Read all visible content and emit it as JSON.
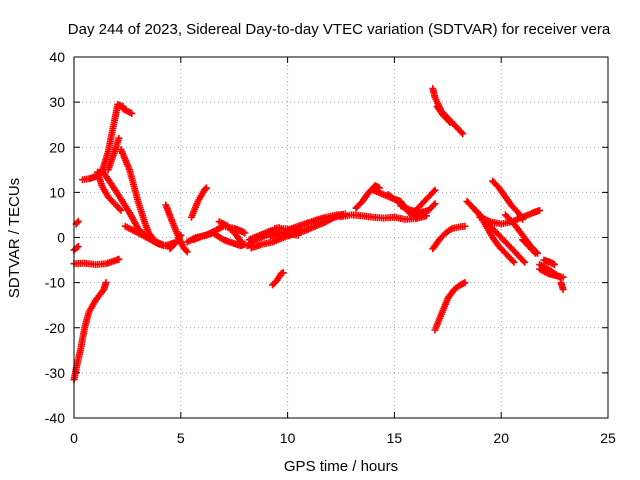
{
  "chart_data": {
    "type": "scatter",
    "title": "Day 244 of 2023, Sidereal Day-to-day VTEC variation (SDTVAR) for receiver vera",
    "xlabel": "GPS time / hours",
    "ylabel": "SDTVAR / TECUs",
    "xlim": [
      0,
      25
    ],
    "ylim": [
      -40,
      40
    ],
    "xticks": [
      "0",
      "5",
      "10",
      "15",
      "20",
      "25"
    ],
    "yticks": [
      "40",
      "30",
      "20",
      "10",
      "0",
      "-10",
      "-20",
      "-30",
      "-40"
    ],
    "grid": true,
    "marker": "plus",
    "color": "#ff0000",
    "segments": [
      [
        [
          0.0,
          -5.8
        ],
        [
          0.5,
          -5.7
        ],
        [
          1.0,
          -6.0
        ],
        [
          1.5,
          -5.8
        ],
        [
          2.0,
          -5.0
        ],
        [
          2.1,
          -4.8
        ]
      ],
      [
        [
          0.0,
          -31.5
        ],
        [
          0.15,
          -28.0
        ],
        [
          0.3,
          -25.0
        ],
        [
          0.5,
          -20.0
        ],
        [
          0.7,
          -16.5
        ],
        [
          1.0,
          -14.0
        ],
        [
          1.4,
          -11.5
        ],
        [
          1.5,
          -10.0
        ]
      ],
      [
        [
          0.0,
          -2.8
        ],
        [
          0.2,
          -2.0
        ]
      ],
      [
        [
          0.1,
          3.0
        ],
        [
          0.2,
          3.6
        ]
      ],
      [
        [
          0.4,
          12.8
        ],
        [
          0.7,
          13.0
        ],
        [
          1.0,
          13.5
        ],
        [
          1.3,
          14.5
        ],
        [
          1.6,
          19.0
        ],
        [
          1.9,
          26.0
        ],
        [
          2.05,
          29.5
        ],
        [
          2.3,
          29.0
        ]
      ],
      [
        [
          1.1,
          14.5
        ],
        [
          1.3,
          11.5
        ],
        [
          1.6,
          9.0
        ],
        [
          2.0,
          7.0
        ],
        [
          2.2,
          6.0
        ]
      ],
      [
        [
          2.3,
          28.5
        ],
        [
          2.7,
          27.5
        ]
      ],
      [
        [
          1.6,
          15.0
        ],
        [
          1.9,
          19.0
        ],
        [
          2.1,
          22.0
        ]
      ],
      [
        [
          2.2,
          19.5
        ],
        [
          2.6,
          15.0
        ],
        [
          3.0,
          8.0
        ],
        [
          3.3,
          3.5
        ],
        [
          3.5,
          1.0
        ],
        [
          3.8,
          -0.8
        ],
        [
          4.2,
          -1.8
        ],
        [
          4.5,
          -1.5
        ],
        [
          4.7,
          -1.2
        ]
      ],
      [
        [
          1.3,
          15.0
        ],
        [
          2.0,
          10.0
        ],
        [
          2.6,
          5.5
        ],
        [
          3.0,
          2.0
        ],
        [
          3.4,
          0.2
        ],
        [
          3.8,
          -1.0
        ],
        [
          4.2,
          -1.8
        ],
        [
          4.5,
          -1.7
        ]
      ],
      [
        [
          2.4,
          2.5
        ],
        [
          3.0,
          1.0
        ],
        [
          3.6,
          -0.5
        ],
        [
          4.0,
          -1.5
        ],
        [
          4.5,
          -2.0
        ]
      ],
      [
        [
          4.3,
          7.2
        ],
        [
          4.6,
          3.5
        ],
        [
          4.9,
          0.0
        ],
        [
          5.1,
          -2.0
        ],
        [
          5.3,
          -3.2
        ]
      ],
      [
        [
          4.5,
          -2.5
        ],
        [
          4.8,
          -1.0
        ],
        [
          5.0,
          0.5
        ]
      ],
      [
        [
          5.3,
          -1.0
        ],
        [
          5.7,
          0.0
        ],
        [
          6.2,
          0.5
        ],
        [
          6.6,
          1.5
        ],
        [
          7.0,
          2.5
        ],
        [
          7.5,
          2.0
        ],
        [
          7.8,
          1.5
        ],
        [
          8.0,
          1.0
        ]
      ],
      [
        [
          5.5,
          4.5
        ],
        [
          5.8,
          8.0
        ],
        [
          6.1,
          10.5
        ],
        [
          6.2,
          11.0
        ]
      ],
      [
        [
          5.6,
          -0.5
        ],
        [
          6.0,
          0.3
        ],
        [
          6.5,
          1.0
        ],
        [
          7.0,
          -0.5
        ],
        [
          7.4,
          -1.2
        ],
        [
          7.8,
          -1.8
        ],
        [
          8.0,
          -1.5
        ]
      ],
      [
        [
          6.8,
          3.5
        ],
        [
          7.2,
          2.5
        ],
        [
          7.6,
          0.5
        ],
        [
          7.8,
          -0.8
        ]
      ],
      [
        [
          8.1,
          -1.8
        ],
        [
          8.5,
          -0.5
        ],
        [
          9.0,
          0.5
        ],
        [
          9.5,
          1.2
        ],
        [
          10.0,
          0.8
        ],
        [
          10.5,
          0.5
        ]
      ],
      [
        [
          8.2,
          -0.5
        ],
        [
          8.7,
          0.5
        ],
        [
          9.2,
          1.5
        ],
        [
          9.7,
          2.0
        ],
        [
          10.2,
          1.8
        ],
        [
          10.7,
          1.5
        ]
      ],
      [
        [
          8.3,
          -2.3
        ],
        [
          8.8,
          -1.5
        ],
        [
          9.3,
          -1.0
        ],
        [
          9.8,
          0.0
        ],
        [
          10.3,
          0.8
        ],
        [
          10.8,
          1.5
        ],
        [
          11.3,
          2.5
        ],
        [
          11.8,
          3.5
        ],
        [
          12.2,
          4.5
        ],
        [
          12.6,
          5.0
        ]
      ],
      [
        [
          9.2,
          0.2
        ],
        [
          9.7,
          0.8
        ],
        [
          10.2,
          2.0
        ],
        [
          10.8,
          3.0
        ],
        [
          11.3,
          3.8
        ],
        [
          11.8,
          4.5
        ],
        [
          12.3,
          5.0
        ],
        [
          12.7,
          5.2
        ]
      ],
      [
        [
          9.4,
          2.0
        ],
        [
          9.6,
          2.2
        ]
      ],
      [
        [
          9.3,
          -10.5
        ],
        [
          9.5,
          -9.5
        ],
        [
          9.7,
          -8.0
        ],
        [
          9.8,
          -7.8
        ]
      ],
      [
        [
          12.5,
          4.6
        ],
        [
          13.0,
          5.0
        ],
        [
          13.5,
          4.8
        ],
        [
          14.0,
          4.5
        ],
        [
          14.5,
          4.3
        ],
        [
          15.0,
          4.5
        ],
        [
          15.5,
          4.0
        ],
        [
          16.0,
          4.2
        ],
        [
          16.5,
          4.8
        ]
      ],
      [
        [
          13.2,
          6.5
        ],
        [
          13.5,
          8.0
        ],
        [
          13.8,
          10.0
        ],
        [
          14.1,
          11.5
        ],
        [
          14.3,
          11.0
        ]
      ],
      [
        [
          14.0,
          10.5
        ],
        [
          14.5,
          9.5
        ],
        [
          15.0,
          8.5
        ],
        [
          15.3,
          8.0
        ],
        [
          15.5,
          6.5
        ],
        [
          15.8,
          5.5
        ],
        [
          16.0,
          5.0
        ]
      ],
      [
        [
          14.7,
          9.5
        ],
        [
          15.0,
          8.5
        ],
        [
          15.3,
          7.5
        ],
        [
          15.6,
          6.0
        ],
        [
          15.8,
          5.0
        ]
      ],
      [
        [
          15.3,
          7.0
        ],
        [
          15.8,
          6.0
        ],
        [
          16.2,
          5.5
        ],
        [
          16.6,
          6.0
        ],
        [
          16.9,
          7.5
        ]
      ],
      [
        [
          16.0,
          6.0
        ],
        [
          16.3,
          7.5
        ],
        [
          16.6,
          9.0
        ],
        [
          16.9,
          10.5
        ]
      ],
      [
        [
          16.8,
          33.0
        ],
        [
          16.9,
          31.0
        ],
        [
          17.2,
          28.0
        ],
        [
          17.6,
          26.0
        ],
        [
          18.0,
          24.0
        ],
        [
          18.2,
          23.0
        ]
      ],
      [
        [
          17.0,
          29.0
        ],
        [
          17.3,
          27.0
        ],
        [
          17.6,
          25.5
        ]
      ],
      [
        [
          16.9,
          -20.5
        ],
        [
          17.2,
          -17.0
        ],
        [
          17.5,
          -13.5
        ],
        [
          17.8,
          -11.5
        ],
        [
          18.1,
          -10.5
        ],
        [
          18.3,
          -10.0
        ]
      ],
      [
        [
          16.8,
          -2.5
        ],
        [
          17.1,
          -0.5
        ],
        [
          17.4,
          1.0
        ],
        [
          17.7,
          2.0
        ],
        [
          18.0,
          2.3
        ],
        [
          18.3,
          2.5
        ]
      ],
      [
        [
          18.4,
          8.0
        ],
        [
          18.7,
          6.5
        ],
        [
          19.0,
          5.0
        ],
        [
          19.3,
          2.5
        ],
        [
          19.6,
          0.0
        ],
        [
          19.9,
          -2.0
        ],
        [
          20.2,
          -3.5
        ],
        [
          20.4,
          -4.5
        ],
        [
          20.6,
          -5.5
        ]
      ],
      [
        [
          18.8,
          6.0
        ],
        [
          19.2,
          4.0
        ],
        [
          19.6,
          2.0
        ],
        [
          20.0,
          0.0
        ],
        [
          20.4,
          -2.0
        ],
        [
          20.8,
          -4.0
        ],
        [
          21.1,
          -5.5
        ]
      ],
      [
        [
          19.0,
          4.5
        ],
        [
          19.5,
          3.5
        ],
        [
          20.0,
          3.0
        ],
        [
          20.5,
          3.5
        ],
        [
          21.0,
          4.5
        ],
        [
          21.5,
          5.5
        ],
        [
          21.8,
          6.0
        ]
      ],
      [
        [
          19.6,
          12.5
        ],
        [
          19.9,
          11.0
        ],
        [
          20.2,
          9.0
        ],
        [
          20.5,
          7.0
        ],
        [
          20.8,
          5.5
        ],
        [
          21.0,
          4.0
        ]
      ],
      [
        [
          20.2,
          5.0
        ],
        [
          20.6,
          3.0
        ],
        [
          21.0,
          0.5
        ],
        [
          21.4,
          -2.0
        ],
        [
          21.7,
          -3.5
        ]
      ],
      [
        [
          21.0,
          -0.5
        ],
        [
          21.3,
          -2.0
        ],
        [
          21.6,
          -3.5
        ]
      ],
      [
        [
          21.8,
          -6.0
        ],
        [
          22.2,
          -7.0
        ],
        [
          22.5,
          -8.0
        ],
        [
          22.8,
          -9.0
        ]
      ],
      [
        [
          21.8,
          -7.0
        ],
        [
          22.2,
          -8.0
        ],
        [
          22.6,
          -8.5
        ],
        [
          22.9,
          -8.8
        ]
      ],
      [
        [
          22.0,
          -5.0
        ],
        [
          22.3,
          -5.5
        ],
        [
          22.5,
          -6.0
        ]
      ],
      [
        [
          22.8,
          -10.0
        ],
        [
          22.9,
          -11.5
        ]
      ]
    ]
  }
}
